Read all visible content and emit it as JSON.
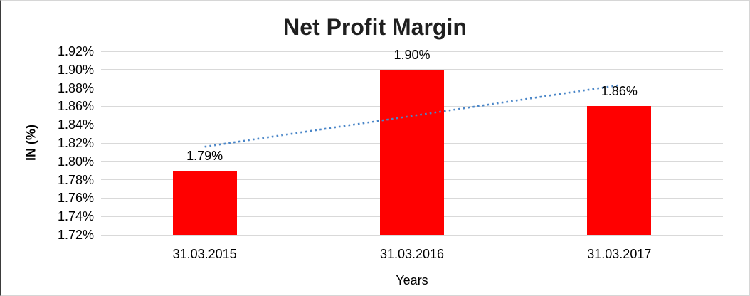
{
  "chart_data": {
    "type": "bar",
    "title": "Net Profit Margin",
    "xlabel": "Years",
    "ylabel": "IN (%)",
    "categories": [
      "31.03.2015",
      "31.03.2016",
      "31.03.2017"
    ],
    "values": [
      1.79,
      1.9,
      1.86
    ],
    "data_labels": [
      "1.79%",
      "1.90%",
      "1.86%"
    ],
    "ylim": [
      1.72,
      1.92
    ],
    "ytick_step": 0.02,
    "ytick_labels": [
      "1.92%",
      "1.90%",
      "1.88%",
      "1.86%",
      "1.84%",
      "1.82%",
      "1.80%",
      "1.78%",
      "1.76%",
      "1.74%",
      "1.72%"
    ],
    "grid": true,
    "legend": false,
    "bar_color": "#FF0000",
    "gridline_color": "#D9D9D9",
    "text_color": "#000000",
    "title_color": "#1F1F1F",
    "trendline": {
      "type": "linear",
      "style": "dotted",
      "color": "#4A86C8",
      "start_value": 1.816,
      "end_value": 1.883
    }
  }
}
